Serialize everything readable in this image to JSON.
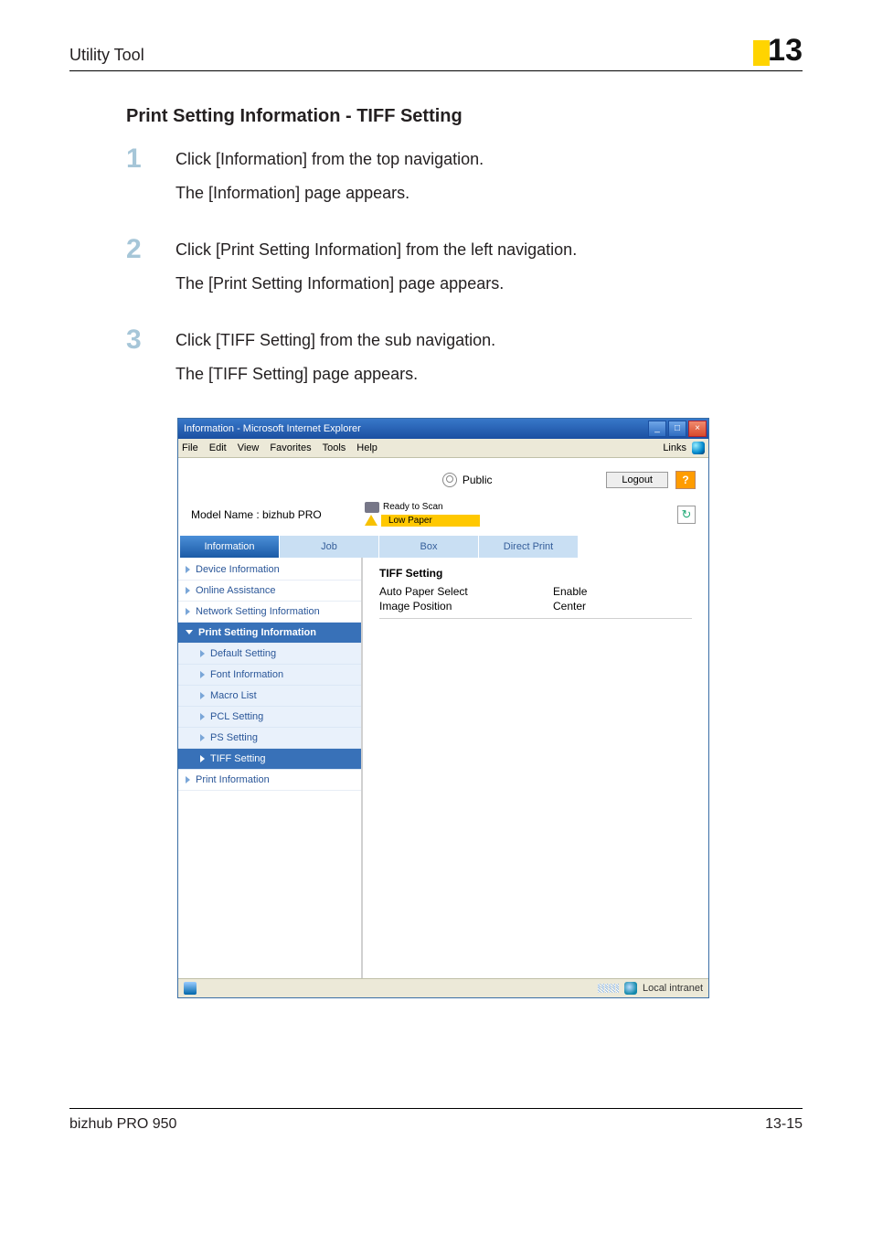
{
  "header": {
    "running_title": "Utility Tool",
    "page_badge_num": "13"
  },
  "section_heading": "Print Setting Information - TIFF Setting",
  "steps": [
    {
      "num": "1",
      "lines": [
        "Click [Information] from the top navigation.",
        "The [Information] page appears."
      ]
    },
    {
      "num": "2",
      "lines": [
        "Click [Print Setting Information] from the left navigation.",
        "The [Print Setting Information] page appears."
      ]
    },
    {
      "num": "3",
      "lines": [
        "Click [TIFF Setting] from the sub navigation.",
        "The [TIFF Setting] page appears."
      ]
    }
  ],
  "screenshot": {
    "window_title": "Information - Microsoft Internet Explorer",
    "menus": {
      "file": "File",
      "edit": "Edit",
      "view": "View",
      "favorites": "Favorites",
      "tools": "Tools",
      "help": "Help"
    },
    "links_label": "Links",
    "public_label": "Public",
    "logout_label": "Logout",
    "model_name": "Model Name : bizhub PRO",
    "status_ready": "Ready to Scan",
    "status_lowpaper": "Low Paper",
    "tabs": {
      "info": "Information",
      "job": "Job",
      "box": "Box",
      "direct": "Direct Print"
    },
    "sidenav": {
      "device_info": "Device Information",
      "online_assist": "Online Assistance",
      "network_setting": "Network Setting Information",
      "print_setting": "Print Setting Information",
      "default_setting": "Default Setting",
      "font_info": "Font Information",
      "macro_list": "Macro List",
      "pcl_setting": "PCL Setting",
      "ps_setting": "PS Setting",
      "tiff_setting": "TIFF Setting",
      "print_info": "Print Information"
    },
    "content": {
      "heading": "TIFF Setting",
      "rows": [
        {
          "k": "Auto Paper Select",
          "v": "Enable"
        },
        {
          "k": "Image Position",
          "v": "Center"
        }
      ]
    },
    "statusbar_text": "Local intranet"
  },
  "footer": {
    "product": "bizhub PRO 950",
    "page": "13-15"
  }
}
